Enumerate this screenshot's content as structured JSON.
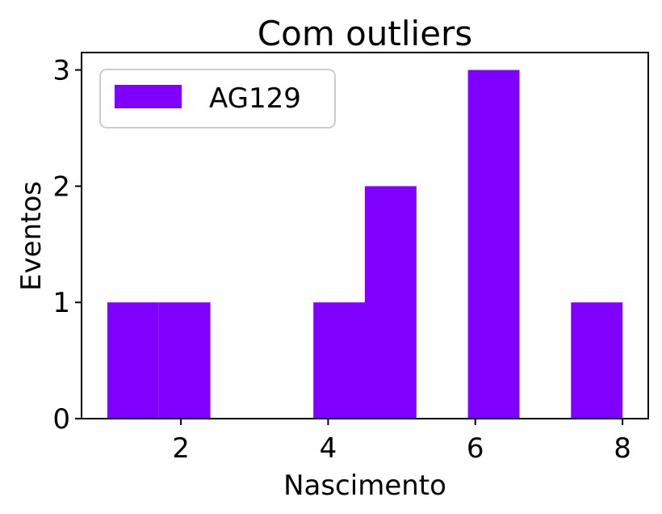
{
  "chart_data": {
    "type": "bar",
    "title": "Com outliers",
    "xlabel": "Nascimento",
    "ylabel": "Eventos",
    "xlim": [
      0.65,
      8.35
    ],
    "ylim": [
      0,
      3.15
    ],
    "xticks": [
      2,
      4,
      6,
      8
    ],
    "yticks": [
      0,
      1,
      2,
      3
    ],
    "bin_edges": [
      1.0,
      1.7,
      2.4,
      3.1,
      3.8,
      4.5,
      5.2,
      5.9,
      6.6,
      7.3,
      8.0
    ],
    "series": [
      {
        "name": "AG129",
        "color": "#7f00ff",
        "values": [
          1,
          1,
          0,
          0,
          1,
          2,
          0,
          3,
          0,
          1
        ]
      }
    ],
    "legend_position": "top-left",
    "grid": false
  }
}
